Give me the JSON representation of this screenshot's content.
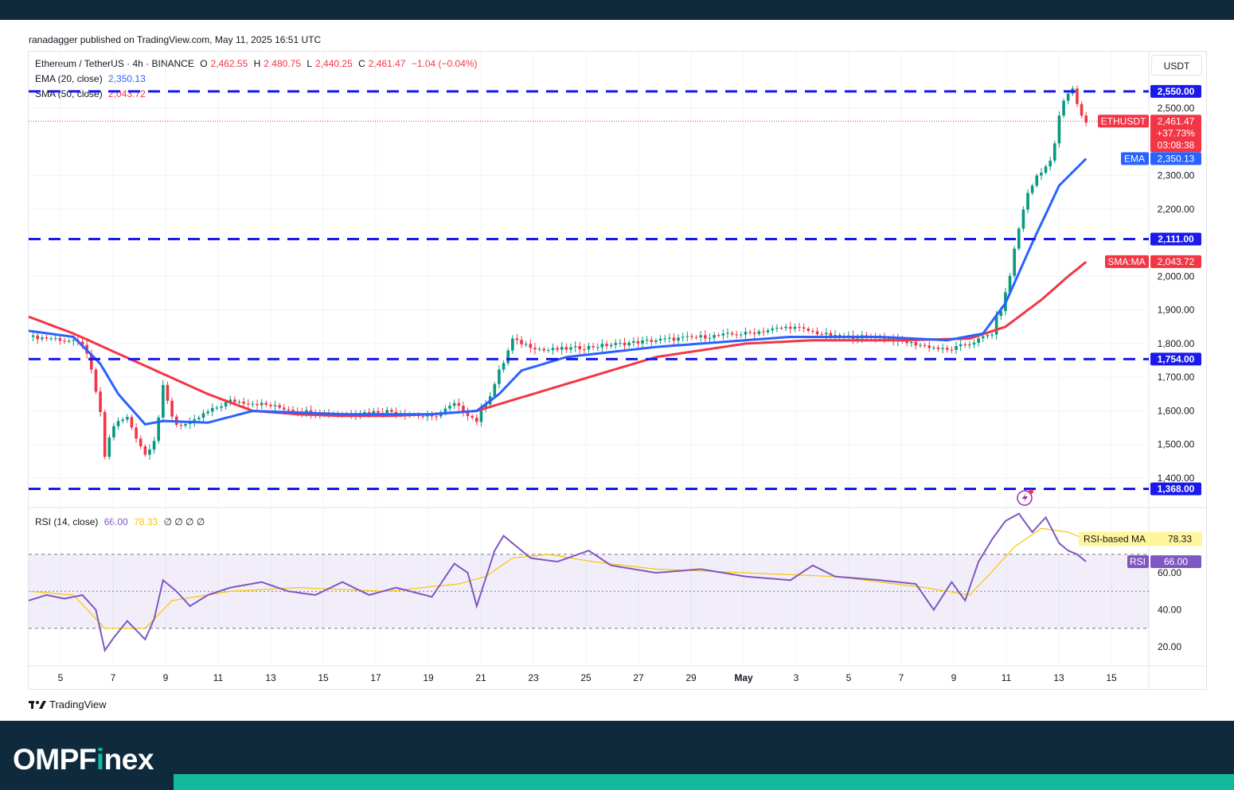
{
  "publisher": "ranadagger published on TradingView.com, May 11, 2025 16:51 UTC",
  "footer": {
    "tradingview": "TradingView"
  },
  "brand": {
    "prefix": "OMPF",
    "accent": "i",
    "suffix": "nex"
  },
  "chart_data": {
    "type": "candlestick",
    "symbol": "Ethereum / TetherUS · 4h · BINANCE",
    "ohlc": {
      "o": "2,462.55",
      "h": "2,480.75",
      "l": "2,440.25",
      "c": "2,461.47",
      "change": "−1.04 (−0.04%)"
    },
    "currency": "USDT",
    "indicators": {
      "ema": {
        "label": "EMA (20, close)",
        "value": "2,350.13",
        "color": "#2962ff"
      },
      "sma": {
        "label": "SMA (50, close)",
        "value": "2,043.72",
        "color": "#f23645"
      }
    },
    "horizontal_levels": [
      {
        "value": 2550,
        "label": "2,550.00"
      },
      {
        "value": 2111,
        "label": "2,111.00"
      },
      {
        "value": 1754,
        "label": "1,754.00"
      },
      {
        "value": 1368,
        "label": "1,368.00"
      }
    ],
    "y_ticks": [
      "2,500.00",
      "2,300.00",
      "2,200.00",
      "2,000.00",
      "1,900.00",
      "1,800.00",
      "1,700.00",
      "1,600.00",
      "1,500.00",
      "1,400.00"
    ],
    "y_tick_values": [
      2500,
      2300,
      2200,
      2000,
      1900,
      1800,
      1700,
      1600,
      1500,
      1400
    ],
    "price_tags": {
      "last": {
        "symbol": "ETHUSDT",
        "price": "2,461.47",
        "change": "+37.73%",
        "countdown": "03:08:38",
        "value": 2461.47
      },
      "ema": {
        "label": "EMA",
        "value": 2350.13,
        "text": "2,350.13"
      },
      "sma": {
        "label": "SMA:MA",
        "value": 2043.72,
        "text": "2,043.72"
      }
    },
    "x_ticks": [
      "5",
      "7",
      "9",
      "11",
      "13",
      "15",
      "17",
      "19",
      "21",
      "23",
      "25",
      "27",
      "29",
      "May",
      "3",
      "5",
      "7",
      "9",
      "11",
      "13",
      "15"
    ],
    "close_series": [
      [
        0,
        1820
      ],
      [
        6,
        1815
      ],
      [
        12,
        1800
      ],
      [
        15,
        1660
      ],
      [
        17,
        1470
      ],
      [
        19,
        1560
      ],
      [
        22,
        1580
      ],
      [
        26,
        1470
      ],
      [
        28,
        1520
      ],
      [
        30,
        1650
      ],
      [
        33,
        1560
      ],
      [
        36,
        1560
      ],
      [
        39,
        1590
      ],
      [
        45,
        1630
      ],
      [
        52,
        1620
      ],
      [
        60,
        1600
      ],
      [
        70,
        1590
      ],
      [
        80,
        1600
      ],
      [
        90,
        1580
      ],
      [
        95,
        1620
      ],
      [
        100,
        1570
      ],
      [
        104,
        1680
      ],
      [
        108,
        1810
      ],
      [
        115,
        1780
      ],
      [
        125,
        1790
      ],
      [
        140,
        1810
      ],
      [
        160,
        1830
      ],
      [
        170,
        1850
      ],
      [
        180,
        1820
      ],
      [
        190,
        1820
      ],
      [
        205,
        1780
      ],
      [
        210,
        1800
      ],
      [
        215,
        1830
      ],
      [
        218,
        1940
      ],
      [
        222,
        2210
      ],
      [
        225,
        2300
      ],
      [
        228,
        2340
      ],
      [
        231,
        2520
      ],
      [
        233,
        2560
      ],
      [
        235,
        2475
      ],
      [
        236,
        2461
      ]
    ],
    "ema_series": [
      [
        0,
        1838
      ],
      [
        10,
        1820
      ],
      [
        16,
        1740
      ],
      [
        20,
        1650
      ],
      [
        26,
        1560
      ],
      [
        30,
        1570
      ],
      [
        40,
        1565
      ],
      [
        50,
        1600
      ],
      [
        70,
        1590
      ],
      [
        90,
        1590
      ],
      [
        100,
        1600
      ],
      [
        105,
        1650
      ],
      [
        110,
        1720
      ],
      [
        120,
        1760
      ],
      [
        140,
        1790
      ],
      [
        170,
        1820
      ],
      [
        190,
        1820
      ],
      [
        205,
        1810
      ],
      [
        213,
        1830
      ],
      [
        218,
        1920
      ],
      [
        224,
        2100
      ],
      [
        230,
        2270
      ],
      [
        236,
        2350
      ]
    ],
    "sma_series": [
      [
        0,
        1880
      ],
      [
        10,
        1830
      ],
      [
        20,
        1770
      ],
      [
        30,
        1710
      ],
      [
        40,
        1650
      ],
      [
        50,
        1600
      ],
      [
        60,
        1590
      ],
      [
        70,
        1585
      ],
      [
        80,
        1585
      ],
      [
        90,
        1590
      ],
      [
        100,
        1600
      ],
      [
        110,
        1640
      ],
      [
        120,
        1680
      ],
      [
        140,
        1760
      ],
      [
        160,
        1800
      ],
      [
        175,
        1810
      ],
      [
        195,
        1810
      ],
      [
        210,
        1815
      ],
      [
        218,
        1850
      ],
      [
        226,
        1930
      ],
      [
        232,
        2000
      ],
      [
        236,
        2043
      ]
    ],
    "rsi": {
      "label": "RSI (14, close)",
      "value": "66.00",
      "ma_value": "78.33",
      "extra": "∅ ∅ ∅ ∅",
      "tags": {
        "ma": "RSI-based MA",
        "rsi": "RSI"
      },
      "levels": [
        70,
        50,
        30
      ],
      "y_ticks": [
        "60.00",
        "40.00",
        "20.00"
      ],
      "y_tick_values": [
        60,
        40,
        20
      ],
      "series": [
        [
          0,
          45
        ],
        [
          4,
          48
        ],
        [
          8,
          46
        ],
        [
          12,
          48
        ],
        [
          15,
          40
        ],
        [
          17,
          18
        ],
        [
          19,
          25
        ],
        [
          22,
          34
        ],
        [
          26,
          24
        ],
        [
          28,
          35
        ],
        [
          30,
          56
        ],
        [
          33,
          50
        ],
        [
          36,
          42
        ],
        [
          40,
          48
        ],
        [
          45,
          52
        ],
        [
          52,
          55
        ],
        [
          58,
          50
        ],
        [
          64,
          48
        ],
        [
          70,
          55
        ],
        [
          76,
          48
        ],
        [
          82,
          52
        ],
        [
          90,
          47
        ],
        [
          95,
          65
        ],
        [
          98,
          60
        ],
        [
          100,
          42
        ],
        [
          104,
          72
        ],
        [
          106,
          80
        ],
        [
          108,
          76
        ],
        [
          112,
          68
        ],
        [
          118,
          66
        ],
        [
          125,
          72
        ],
        [
          130,
          64
        ],
        [
          140,
          60
        ],
        [
          150,
          62
        ],
        [
          160,
          58
        ],
        [
          170,
          56
        ],
        [
          175,
          64
        ],
        [
          180,
          58
        ],
        [
          190,
          56
        ],
        [
          198,
          54
        ],
        [
          202,
          40
        ],
        [
          206,
          55
        ],
        [
          209,
          45
        ],
        [
          212,
          66
        ],
        [
          215,
          78
        ],
        [
          218,
          88
        ],
        [
          221,
          92
        ],
        [
          224,
          82
        ],
        [
          227,
          90
        ],
        [
          230,
          76
        ],
        [
          232,
          72
        ],
        [
          234,
          70
        ],
        [
          236,
          66
        ]
      ],
      "ma_series": [
        [
          0,
          50
        ],
        [
          10,
          48
        ],
        [
          17,
          30
        ],
        [
          26,
          30
        ],
        [
          32,
          45
        ],
        [
          45,
          50
        ],
        [
          60,
          52
        ],
        [
          80,
          50
        ],
        [
          96,
          54
        ],
        [
          102,
          58
        ],
        [
          108,
          68
        ],
        [
          116,
          70
        ],
        [
          126,
          66
        ],
        [
          140,
          62
        ],
        [
          160,
          60
        ],
        [
          180,
          58
        ],
        [
          200,
          52
        ],
        [
          210,
          48
        ],
        [
          214,
          58
        ],
        [
          220,
          74
        ],
        [
          226,
          84
        ],
        [
          232,
          82
        ],
        [
          236,
          78
        ]
      ]
    }
  }
}
